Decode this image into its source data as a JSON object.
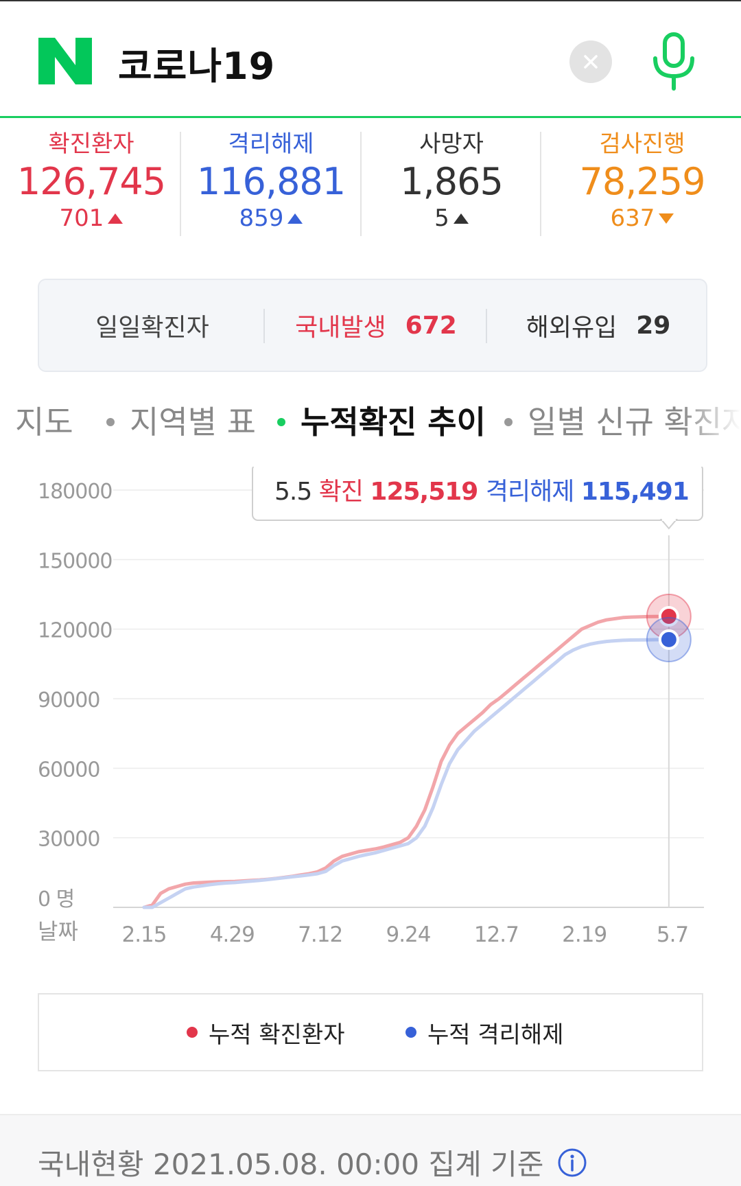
{
  "search": {
    "query": "코로나19"
  },
  "colors": {
    "confirmed": "#e2364b",
    "released": "#3761d8",
    "deaths": "#333333",
    "tests": "#ef8d1b",
    "naver_green": "#03c75a"
  },
  "stats": [
    {
      "label": "확진환자",
      "value": "126,745",
      "delta": "701",
      "direction": "up",
      "color": "#e2364b"
    },
    {
      "label": "격리해제",
      "value": "116,881",
      "delta": "859",
      "direction": "up",
      "color": "#3761d8"
    },
    {
      "label": "사망자",
      "value": "1,865",
      "delta": "5",
      "direction": "up",
      "color": "#333333"
    },
    {
      "label": "검사진행",
      "value": "78,259",
      "delta": "637",
      "direction": "down",
      "color": "#ef8d1b"
    }
  ],
  "daily": {
    "title": "일일확진자",
    "domestic_label": "국내발생",
    "domestic_value": "672",
    "overseas_label": "해외유입",
    "overseas_value": "29"
  },
  "tabs": [
    "지도",
    "지역별 표",
    "누적확진 추이",
    "일별 신규 확진자"
  ],
  "active_tab": 2,
  "tooltip": {
    "date": "5.5",
    "confirmed_label": "확진",
    "confirmed_value": "125,519",
    "released_label": "격리해제",
    "released_value": "115,491"
  },
  "chart_data": {
    "type": "line",
    "ylim": [
      0,
      180000
    ],
    "yticks": [
      "180000",
      "150000",
      "120000",
      "90000",
      "60000",
      "30000",
      "0 명"
    ],
    "ytick_values": [
      180000,
      150000,
      120000,
      90000,
      60000,
      30000,
      0
    ],
    "xlabel": "날짜",
    "xtick_labels": [
      "2.15",
      "4.29",
      "7.12",
      "9.24",
      "12.7",
      "2.19",
      "5.7"
    ],
    "x": [
      0,
      7,
      14,
      21,
      28,
      35,
      42,
      49,
      56,
      63,
      70,
      77,
      84,
      91,
      98,
      105,
      112,
      119,
      126,
      133,
      140,
      147,
      154,
      161,
      168,
      175,
      182,
      189,
      196,
      203,
      210,
      217,
      224,
      231,
      238,
      245,
      252,
      259,
      266,
      273,
      280,
      287,
      294,
      301,
      308,
      315,
      322,
      329,
      336,
      343,
      350,
      357,
      364,
      371,
      378,
      385,
      392,
      399,
      406,
      413,
      420,
      427,
      434,
      445,
      448
    ],
    "series": [
      {
        "name": "누적 확진환자",
        "color": "#e2364b",
        "values": [
          0,
          1000,
          6000,
          8000,
          9000,
          10000,
          10500,
          10700,
          10900,
          11000,
          11100,
          11200,
          11400,
          11600,
          11800,
          12100,
          12500,
          12900,
          13400,
          14000,
          14500,
          15300,
          17000,
          20000,
          22000,
          23000,
          24000,
          24600,
          25200,
          26000,
          27000,
          28000,
          30000,
          35000,
          42000,
          52000,
          63000,
          70000,
          75000,
          78000,
          81000,
          84000,
          87500,
          90000,
          93000,
          96000,
          99000,
          102000,
          105000,
          108000,
          111000,
          114000,
          117000,
          120000,
          121500,
          123000,
          124000,
          124500,
          125000,
          125200,
          125300,
          125400,
          125450,
          125519,
          126745
        ]
      },
      {
        "name": "누적 격리해제",
        "color": "#3761d8",
        "values": [
          0,
          10,
          2000,
          4000,
          6000,
          8000,
          8800,
          9300,
          9800,
          10200,
          10500,
          10700,
          11000,
          11300,
          11600,
          12000,
          12400,
          12800,
          13200,
          13600,
          14000,
          14500,
          15500,
          18000,
          20000,
          21000,
          22000,
          22800,
          23500,
          24500,
          25500,
          26500,
          27500,
          30000,
          35000,
          43000,
          53000,
          62000,
          68000,
          72000,
          76000,
          79000,
          82000,
          85000,
          88000,
          91000,
          94000,
          97000,
          100000,
          103000,
          106000,
          109000,
          111000,
          112500,
          113500,
          114200,
          114700,
          115000,
          115200,
          115300,
          115350,
          115400,
          115450,
          115491,
          116881
        ]
      }
    ],
    "highlight_index": 63
  },
  "legend": {
    "confirmed": "누적 확진환자",
    "released": "누적 격리해제"
  },
  "footer": {
    "text": "국내현황 2021.05.08. 00:00 집계 기준"
  }
}
